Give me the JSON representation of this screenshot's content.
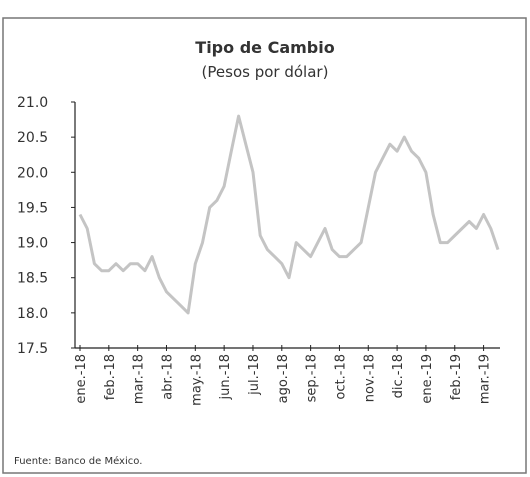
{
  "chart_data": {
    "type": "line",
    "title": "Tipo de Cambio",
    "subtitle": "(Pesos por dólar)",
    "source": "Fuente: Banco de México.",
    "categories": [
      "ene.-18",
      null,
      null,
      null,
      "feb.-18",
      null,
      null,
      null,
      "mar.-18",
      null,
      null,
      null,
      "abr.-18",
      null,
      null,
      null,
      "may.-18",
      null,
      null,
      null,
      "jun.-18",
      null,
      null,
      null,
      "jul.-18",
      null,
      null,
      null,
      "ago.-18",
      null,
      null,
      null,
      "sep.-18",
      null,
      null,
      null,
      "oct.-18",
      null,
      null,
      null,
      "nov.-18",
      null,
      null,
      null,
      "dic.-18",
      null,
      null,
      null,
      "ene.-19",
      null,
      null,
      null,
      "feb.-19",
      null,
      null,
      null,
      "mar.-19",
      null,
      null
    ],
    "series": [
      {
        "name": "Tipo de Cambio",
        "color": "#c4c4c4",
        "values": [
          19.4,
          19.2,
          18.7,
          18.6,
          18.6,
          18.7,
          18.6,
          18.7,
          18.7,
          18.6,
          18.8,
          18.5,
          18.3,
          18.2,
          18.1,
          18.0,
          18.7,
          19.0,
          19.5,
          19.6,
          19.8,
          20.3,
          20.8,
          20.4,
          20.0,
          19.1,
          18.9,
          18.8,
          18.7,
          18.5,
          19.0,
          18.9,
          18.8,
          19.0,
          19.2,
          18.9,
          18.8,
          18.8,
          18.9,
          19.0,
          19.5,
          20.0,
          20.2,
          20.4,
          20.3,
          20.5,
          20.3,
          20.2,
          20.0,
          19.4,
          19.0,
          19.0,
          19.1,
          19.2,
          19.3,
          19.2,
          19.4,
          19.2,
          18.9
        ]
      }
    ],
    "ylim": [
      17.5,
      21.0
    ],
    "yticks": [
      {
        "value": 21.0,
        "label": "21.0"
      },
      {
        "value": 20.5,
        "label": "20.5"
      },
      {
        "value": 20.0,
        "label": "20.0"
      },
      {
        "value": 19.5,
        "label": "19.5"
      },
      {
        "value": 19.0,
        "label": "19.0"
      },
      {
        "value": 18.5,
        "label": "18.5"
      },
      {
        "value": 18.0,
        "label": "18.0"
      },
      {
        "value": 17.5,
        "label": "17.5"
      }
    ],
    "grid": false
  }
}
